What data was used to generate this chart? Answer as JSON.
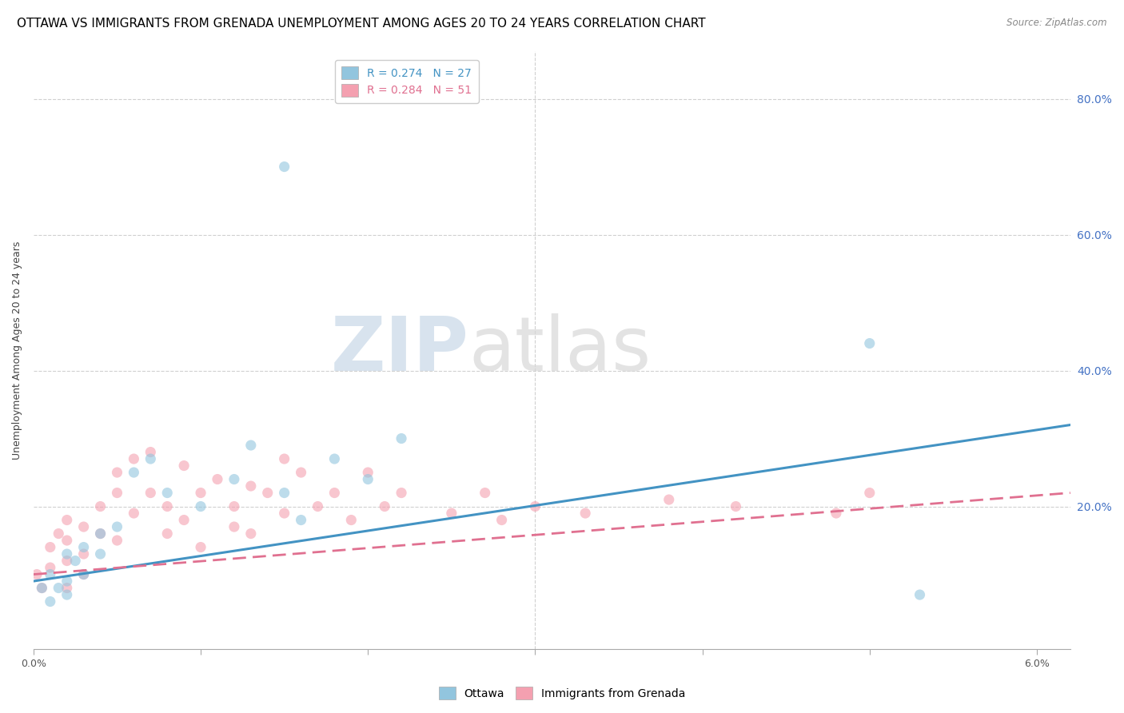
{
  "title": "OTTAWA VS IMMIGRANTS FROM GRENADA UNEMPLOYMENT AMONG AGES 20 TO 24 YEARS CORRELATION CHART",
  "source": "Source: ZipAtlas.com",
  "ylabel": "Unemployment Among Ages 20 to 24 years",
  "ylabel_right_ticks": [
    "80.0%",
    "60.0%",
    "40.0%",
    "20.0%"
  ],
  "ylabel_right_vals": [
    0.8,
    0.6,
    0.4,
    0.2
  ],
  "xlim": [
    0.0,
    0.062
  ],
  "ylim": [
    -0.01,
    0.87
  ],
  "legend_ottawa": "R = 0.274   N = 27",
  "legend_grenada": "R = 0.284   N = 51",
  "ottawa_color": "#92c5de",
  "grenada_color": "#f4a0b0",
  "ottawa_line_color": "#4393c3",
  "grenada_line_color": "#e07090",
  "ottawa_scatter_x": [
    0.0005,
    0.001,
    0.001,
    0.0015,
    0.002,
    0.002,
    0.002,
    0.0025,
    0.003,
    0.003,
    0.004,
    0.004,
    0.005,
    0.006,
    0.007,
    0.008,
    0.01,
    0.012,
    0.013,
    0.015,
    0.016,
    0.018,
    0.02,
    0.022,
    0.015,
    0.05,
    0.053
  ],
  "ottawa_scatter_y": [
    0.08,
    0.06,
    0.1,
    0.08,
    0.13,
    0.09,
    0.07,
    0.12,
    0.14,
    0.1,
    0.16,
    0.13,
    0.17,
    0.25,
    0.27,
    0.22,
    0.2,
    0.24,
    0.29,
    0.22,
    0.18,
    0.27,
    0.24,
    0.3,
    0.7,
    0.44,
    0.07
  ],
  "grenada_scatter_x": [
    0.0002,
    0.0005,
    0.001,
    0.001,
    0.0015,
    0.002,
    0.002,
    0.002,
    0.002,
    0.003,
    0.003,
    0.003,
    0.004,
    0.004,
    0.005,
    0.005,
    0.005,
    0.006,
    0.006,
    0.007,
    0.007,
    0.008,
    0.008,
    0.009,
    0.009,
    0.01,
    0.01,
    0.011,
    0.012,
    0.012,
    0.013,
    0.013,
    0.014,
    0.015,
    0.015,
    0.016,
    0.017,
    0.018,
    0.019,
    0.02,
    0.021,
    0.022,
    0.025,
    0.027,
    0.028,
    0.03,
    0.033,
    0.038,
    0.042,
    0.048,
    0.05
  ],
  "grenada_scatter_y": [
    0.1,
    0.08,
    0.14,
    0.11,
    0.16,
    0.12,
    0.08,
    0.18,
    0.15,
    0.13,
    0.17,
    0.1,
    0.2,
    0.16,
    0.22,
    0.15,
    0.25,
    0.27,
    0.19,
    0.28,
    0.22,
    0.2,
    0.16,
    0.18,
    0.26,
    0.22,
    0.14,
    0.24,
    0.17,
    0.2,
    0.23,
    0.16,
    0.22,
    0.27,
    0.19,
    0.25,
    0.2,
    0.22,
    0.18,
    0.25,
    0.2,
    0.22,
    0.19,
    0.22,
    0.18,
    0.2,
    0.19,
    0.21,
    0.2,
    0.19,
    0.22
  ],
  "watermark_zip": "ZIP",
  "watermark_atlas": "atlas",
  "title_fontsize": 11,
  "axis_fontsize": 9,
  "legend_fontsize": 10
}
